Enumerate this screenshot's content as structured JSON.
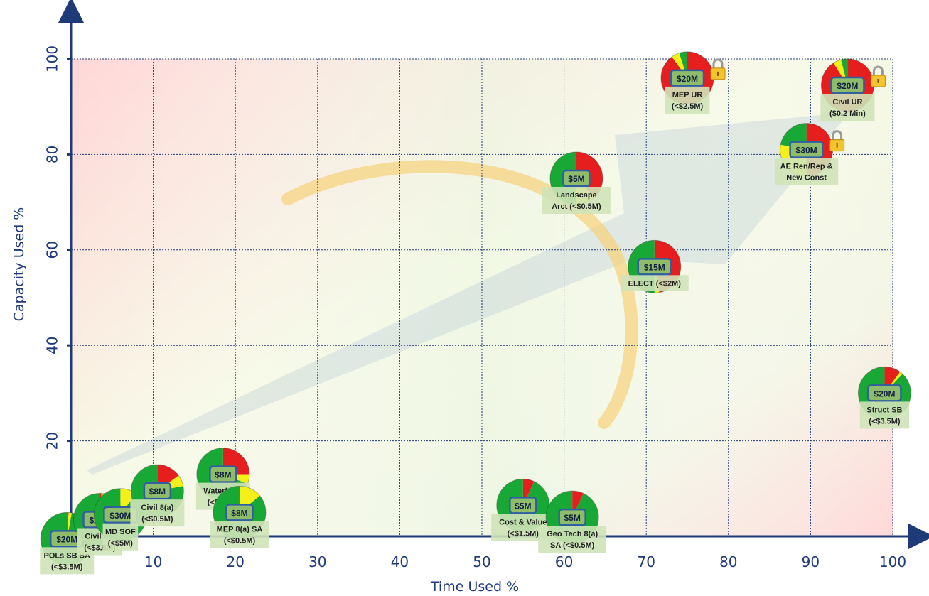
{
  "chart_data": {
    "type": "scatter",
    "title": "",
    "xlabel": "Time Used %",
    "ylabel": "Capacity Used %",
    "xlim": [
      0,
      100
    ],
    "ylim": [
      0,
      100
    ],
    "x_ticks": [
      "10",
      "20",
      "30",
      "40",
      "50",
      "60",
      "70",
      "80",
      "90",
      "100"
    ],
    "y_ticks": [
      "20",
      "40",
      "60",
      "80",
      "100"
    ],
    "grid": true,
    "colors": {
      "green": "#18a835",
      "yellow": "#f5ef1a",
      "red": "#e61e1e",
      "axis": "#1f3a78",
      "label_bg": "#cfe3b8",
      "value_bg": "#6b8fb5"
    },
    "points": [
      {
        "value": "$20M",
        "label": [
          "POLs SB SA",
          "(<$3.5M)"
        ],
        "x": -0.5,
        "y": -0.5,
        "pie": {
          "green": 0.97,
          "yellow": 0.02,
          "red": 0.01
        },
        "locked": false
      },
      {
        "value": "$20M",
        "label": [
          "Civil UR",
          "(<$3.5M)"
        ],
        "x": 3.5,
        "y": 3.5,
        "pie": {
          "green": 0.96,
          "yellow": 0.03,
          "red": 0.01
        },
        "locked": false
      },
      {
        "value": "$30M",
        "label": [
          "MD SOF",
          "(<$5M)"
        ],
        "x": 6,
        "y": 4.5,
        "pie": {
          "green": 0.9,
          "yellow": 0.1,
          "red": 0
        },
        "locked": false
      },
      {
        "value": "$8M",
        "label": [
          "Civil 8(a)",
          "(<$0.5M)"
        ],
        "x": 10.5,
        "y": 9.5,
        "pie": {
          "green": 0.78,
          "yellow": 0.07,
          "red": 0.15
        },
        "locked": false
      },
      {
        "value": "$8M",
        "label": [
          "Waterfront",
          "(<$1.5M)"
        ],
        "x": 18.5,
        "y": 13,
        "pie": {
          "green": 0.69,
          "yellow": 0.06,
          "red": 0.25
        },
        "locked": false
      },
      {
        "value": "$8M",
        "label": [
          "MEP 8(a) SA",
          "(<$0.5M)"
        ],
        "x": 20.5,
        "y": 5,
        "pie": {
          "green": 0.86,
          "yellow": 0.14,
          "red": 0
        },
        "locked": false
      },
      {
        "value": "$5M",
        "label": [
          "Cost & Value",
          "(<$1.5M)"
        ],
        "x": 55,
        "y": 6.5,
        "pie": {
          "green": 0.93,
          "yellow": 0,
          "red": 0.07
        },
        "locked": false
      },
      {
        "value": "$5M",
        "label": [
          "Geo Tech 8(a)",
          "SA   (<$0.5M)"
        ],
        "x": 61,
        "y": 4,
        "pie": {
          "green": 0.93,
          "yellow": 0,
          "red": 0.07
        },
        "locked": false
      },
      {
        "value": "$15M",
        "label": [
          "ELECT  (<$2M)"
        ],
        "x": 71,
        "y": 56.5,
        "pie": {
          "green": 0.5,
          "yellow": 0.03,
          "red": 0.47
        },
        "locked": false
      },
      {
        "value": "$5M",
        "label": [
          "Landscape",
          "Arct (<$0.5M)"
        ],
        "x": 61.5,
        "y": 75,
        "pie": {
          "green": 0.5,
          "yellow": 0.12,
          "red": 0.38
        },
        "locked": false
      },
      {
        "value": "$20M",
        "label": [
          "MEP UR",
          "(<$2.5M)"
        ],
        "x": 75,
        "y": 96,
        "pie": {
          "green": 0.05,
          "yellow": 0.05,
          "red": 0.9
        },
        "locked": true
      },
      {
        "value": "$30M",
        "label": [
          "AE Ren/Rep &",
          "New Const"
        ],
        "x": 89.5,
        "y": 81,
        "pie": {
          "green": 0.22,
          "yellow": 0.28,
          "red": 0.5
        },
        "locked": true
      },
      {
        "value": "$20M",
        "label": [
          "Civil UR",
          "($0.2 Min)"
        ],
        "x": 94.5,
        "y": 94.5,
        "pie": {
          "green": 0.04,
          "yellow": 0.05,
          "red": 0.91
        },
        "locked": true
      },
      {
        "value": "$20M",
        "label": [
          "Struct SB",
          "(<$3.5M)"
        ],
        "x": 99,
        "y": 30,
        "pie": {
          "green": 0.88,
          "yellow": 0.02,
          "red": 0.1
        },
        "locked": false
      }
    ]
  }
}
